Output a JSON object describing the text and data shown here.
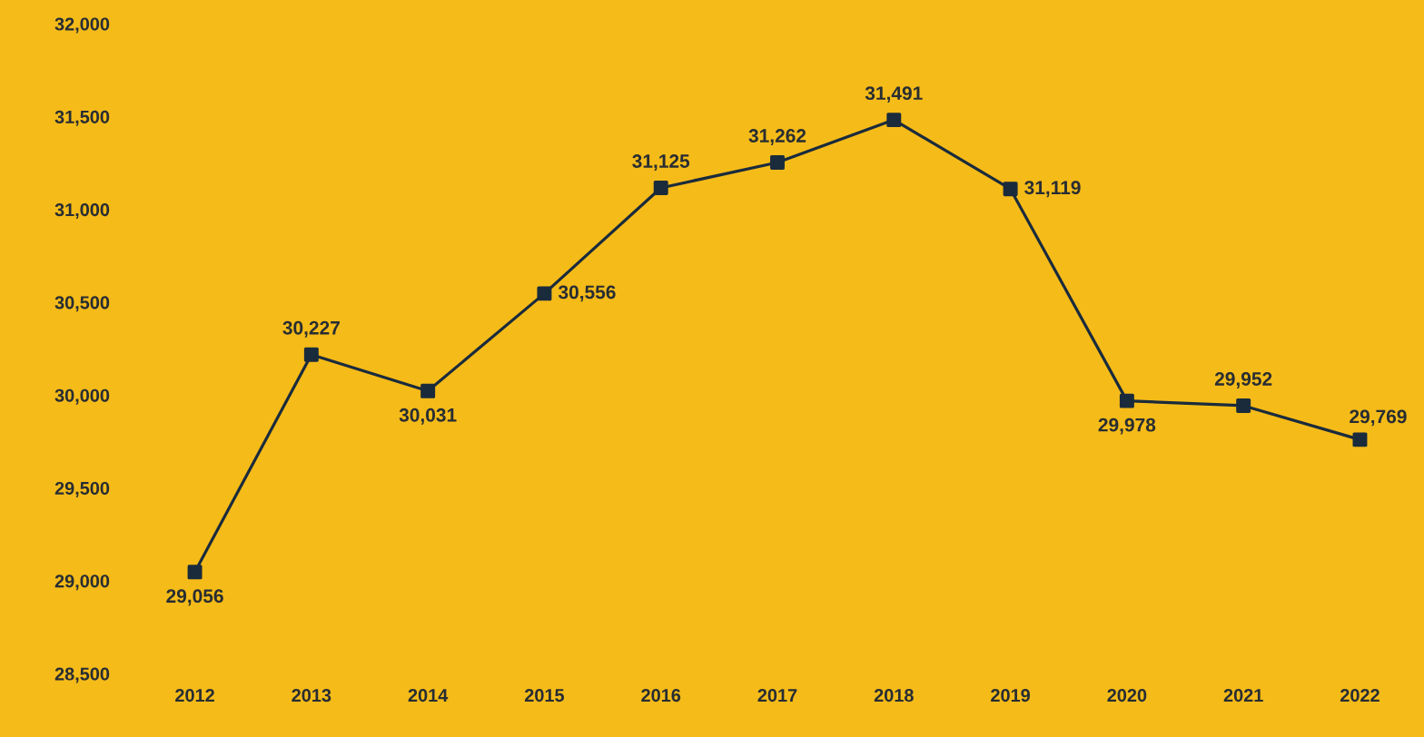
{
  "chart_data": {
    "type": "line",
    "categories": [
      "2012",
      "2013",
      "2014",
      "2015",
      "2016",
      "2017",
      "2018",
      "2019",
      "2020",
      "2021",
      "2022"
    ],
    "series": [
      {
        "color": "#1a2b3c",
        "values": [
          29056,
          30227,
          30031,
          30556,
          31125,
          31262,
          31491,
          31119,
          29978,
          29952,
          29769
        ],
        "value_labels": [
          "29,056",
          "30,227",
          "30,031",
          "30,556",
          "31,125",
          "31,262",
          "31,491",
          "31,119",
          "29,978",
          "29,952",
          "29,769"
        ]
      }
    ],
    "ylim": [
      28500,
      32000
    ],
    "yticks": [
      {
        "value": 28500,
        "label": "28,500"
      },
      {
        "value": 29000,
        "label": "29,000"
      },
      {
        "value": 29500,
        "label": "29,500"
      },
      {
        "value": 30000,
        "label": "30,000"
      },
      {
        "value": 30500,
        "label": "30,500"
      },
      {
        "value": 31000,
        "label": "31,000"
      },
      {
        "value": 31500,
        "label": "31,500"
      },
      {
        "value": 32000,
        "label": "32,000"
      }
    ],
    "marker": "square",
    "line_style": "solid"
  }
}
